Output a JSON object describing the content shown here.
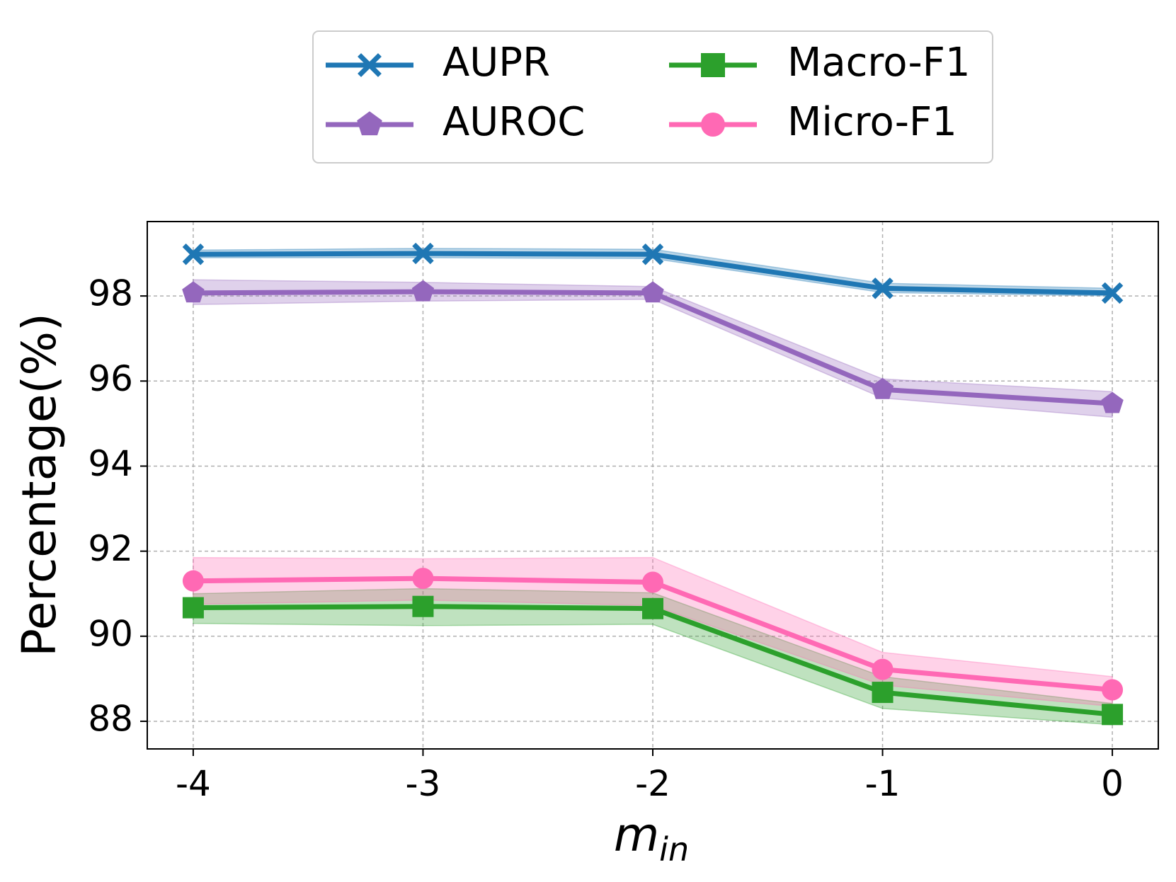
{
  "chart_data": {
    "type": "line",
    "title": "",
    "xlabel": "m",
    "xlabel_sub": "in",
    "ylabel": "Percentage(%)",
    "x": [
      -4,
      -3,
      -2,
      -1,
      0
    ],
    "x_tick_labels": [
      "-4",
      "-3",
      "-2",
      "-1",
      "0"
    ],
    "xlim": [
      -4.2,
      0.2
    ],
    "ylim": [
      87.35,
      99.75
    ],
    "y_ticks": [
      88,
      90,
      92,
      94,
      96,
      98
    ],
    "grid": true,
    "legend_position": "top-center",
    "series": [
      {
        "name": "AUPR",
        "color": "#1f77b4",
        "marker": "x",
        "values": [
          98.98,
          99.0,
          98.98,
          98.18,
          98.07
        ],
        "band_low": [
          98.9,
          98.9,
          98.88,
          98.08,
          98.0
        ],
        "band_high": [
          99.08,
          99.12,
          99.1,
          98.3,
          98.18
        ]
      },
      {
        "name": "AUROC",
        "color": "#9467bd",
        "marker": "pentagon",
        "values": [
          98.07,
          98.1,
          98.07,
          95.8,
          95.47
        ],
        "band_low": [
          97.8,
          97.88,
          97.92,
          95.6,
          95.15
        ],
        "band_high": [
          98.38,
          98.32,
          98.22,
          96.05,
          95.75
        ]
      },
      {
        "name": "Macro-F1",
        "color": "#2ca02c",
        "marker": "square",
        "values": [
          90.67,
          90.7,
          90.65,
          88.68,
          88.16
        ],
        "band_low": [
          90.3,
          90.25,
          90.28,
          88.3,
          87.92
        ],
        "band_high": [
          91.0,
          91.12,
          91.02,
          89.05,
          88.42
        ]
      },
      {
        "name": "Micro-F1",
        "color": "#ff69b4",
        "marker": "circle",
        "values": [
          91.3,
          91.36,
          91.27,
          89.22,
          88.74
        ],
        "band_low": [
          90.75,
          90.85,
          90.72,
          88.85,
          88.35
        ],
        "band_high": [
          91.85,
          91.82,
          91.85,
          89.62,
          89.05
        ]
      }
    ]
  }
}
